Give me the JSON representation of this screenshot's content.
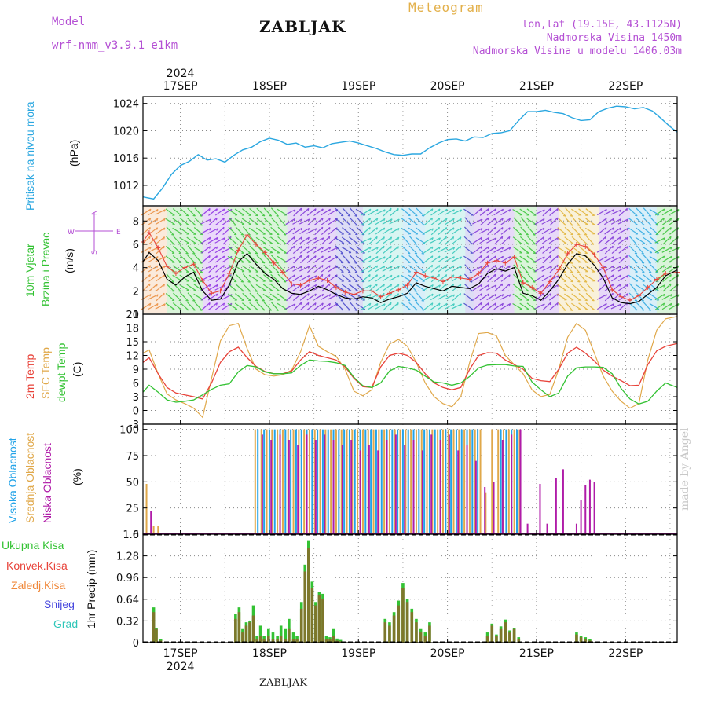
{
  "header": {
    "model_label": "Model",
    "model_name": "wrf-nmm_v3.9.1  e1km",
    "title": "ZABLJAK",
    "meteogram_label": "Meteogram",
    "location": "lon,lat (19.15E, 43.1125N)",
    "altitude": "Nadmorska Visina 1450m",
    "model_altitude": "Nadmorska Visina u modelu 1406.03m",
    "year_top": "2024",
    "year_bottom": "2024",
    "footer": "ZABLJAK",
    "watermark": "made by Angel"
  },
  "time_axis": {
    "start_day": 16.58,
    "end_day": 22.58,
    "tick_labels": [
      "17SEP",
      "18SEP",
      "19SEP",
      "20SEP",
      "21SEP",
      "22SEP"
    ],
    "tick_days": [
      17,
      18,
      19,
      20,
      21,
      22
    ]
  },
  "panel_labels": {
    "pressure": "Pritisak na nivou mora",
    "pressure_unit": "(hPa)",
    "wind_1": "10m Vjetar",
    "wind_2": "Brzina i Pravac",
    "wind_unit": "(m/s)",
    "compass": "N  S  W  E",
    "temp_2m": "2m Temp",
    "temp_sfc": "SFC Temp",
    "temp_dew": "dewpt Temp",
    "temp_unit": "(C)",
    "cloud_high": "Visoka Oblacnost",
    "cloud_mid": "Srednja Oblacnost",
    "cloud_low": "Niska Oblacnost",
    "cloud_unit": "(%)",
    "precip_total": "Ukupna Kisa",
    "precip_conv": "Konvek.Kisa",
    "precip_frz": "Zaledj.Kisa",
    "precip_snow": "Snijeg",
    "precip_grad": "Grad",
    "precip_unit": "1hr Precip (mm)"
  },
  "colors": {
    "pressure": "#2ba7e0",
    "wind_speed": "#000000",
    "wind_gust": "#e8433a",
    "temp_2m": "#e8433a",
    "temp_sfc": "#e0a84a",
    "temp_dew": "#33c233",
    "cloud_high": "#22a3e8",
    "cloud_mid": "#e0a84a",
    "cloud_low": "#b01ca8",
    "precip_total": "#33c233",
    "precip_conv": "#e8433a",
    "precip_frz": "#f0883a",
    "precip_snow": "#4444dd",
    "precip_grad": "#2ec6b8",
    "grid": "#888888"
  },
  "chart_data": [
    {
      "type": "line",
      "name": "pressure",
      "ylim": [
        1009,
        1025
      ],
      "yticks": [
        1012,
        1016,
        1020,
        1024
      ],
      "x": [
        16.58,
        16.7,
        16.8,
        16.9,
        17.0,
        17.1,
        17.2,
        17.3,
        17.4,
        17.5,
        17.6,
        17.7,
        17.8,
        17.9,
        18.0,
        18.1,
        18.2,
        18.3,
        18.4,
        18.5,
        18.6,
        18.7,
        18.8,
        18.9,
        19.0,
        19.1,
        19.2,
        19.3,
        19.4,
        19.5,
        19.6,
        19.7,
        19.8,
        19.9,
        20.0,
        20.1,
        20.2,
        20.3,
        20.4,
        20.5,
        20.6,
        20.7,
        20.8,
        20.9,
        21.0,
        21.1,
        21.2,
        21.3,
        21.4,
        21.5,
        21.6,
        21.7,
        21.8,
        21.9,
        22.0,
        22.1,
        22.2,
        22.3,
        22.4,
        22.5,
        22.58
      ],
      "y": [
        1010.3,
        1010.0,
        1011.6,
        1013.6,
        1014.9,
        1015.5,
        1016.5,
        1015.7,
        1015.9,
        1015.4,
        1016.4,
        1017.2,
        1017.6,
        1018.4,
        1018.9,
        1018.6,
        1018.0,
        1018.2,
        1017.6,
        1017.8,
        1017.5,
        1018.1,
        1018.3,
        1018.5,
        1018.2,
        1017.8,
        1017.4,
        1016.9,
        1016.5,
        1016.4,
        1016.6,
        1016.6,
        1017.5,
        1018.2,
        1018.7,
        1018.8,
        1018.5,
        1019.1,
        1019.0,
        1019.6,
        1019.7,
        1020.0,
        1021.5,
        1022.8,
        1022.8,
        1023.0,
        1022.7,
        1022.5,
        1021.9,
        1021.5,
        1021.6,
        1022.8,
        1023.3,
        1023.6,
        1023.5,
        1023.2,
        1023.4,
        1022.9,
        1021.8,
        1020.6,
        1019.8
      ]
    },
    {
      "type": "line",
      "name": "wind",
      "ylim": [
        0,
        9.3
      ],
      "yticks": [
        0,
        2,
        4,
        6,
        8
      ],
      "x": [
        16.58,
        16.65,
        16.75,
        16.85,
        16.95,
        17.05,
        17.15,
        17.25,
        17.35,
        17.45,
        17.55,
        17.65,
        17.75,
        17.85,
        17.95,
        18.05,
        18.15,
        18.25,
        18.35,
        18.45,
        18.55,
        18.65,
        18.75,
        18.85,
        18.95,
        19.05,
        19.15,
        19.25,
        19.35,
        19.45,
        19.55,
        19.65,
        19.75,
        19.85,
        19.95,
        20.05,
        20.15,
        20.25,
        20.35,
        20.45,
        20.55,
        20.65,
        20.75,
        20.85,
        20.95,
        21.05,
        21.15,
        21.25,
        21.35,
        21.45,
        21.55,
        21.65,
        21.75,
        21.85,
        21.95,
        22.05,
        22.15,
        22.25,
        22.35,
        22.45,
        22.58
      ],
      "speed": [
        4.5,
        5.3,
        4.6,
        3.0,
        2.5,
        3.2,
        3.6,
        2.0,
        1.2,
        1.3,
        2.5,
        4.5,
        5.2,
        4.3,
        3.5,
        3.0,
        2.2,
        1.8,
        1.7,
        2.0,
        2.4,
        2.1,
        1.7,
        1.4,
        1.3,
        1.5,
        1.4,
        1.0,
        1.3,
        1.5,
        1.8,
        2.7,
        2.4,
        2.2,
        2.0,
        2.4,
        2.3,
        2.2,
        2.6,
        3.5,
        3.9,
        3.7,
        4.0,
        1.8,
        1.6,
        1.2,
        2.0,
        3.0,
        4.3,
        5.2,
        5.0,
        4.2,
        3.1,
        1.4,
        1.0,
        0.9,
        1.1,
        1.7,
        2.3,
        3.3,
        3.8
      ],
      "gust": [
        6.2,
        7.0,
        5.7,
        4.1,
        3.5,
        4.0,
        4.3,
        2.9,
        1.8,
        2.0,
        3.5,
        5.5,
        6.8,
        6.0,
        5.3,
        4.4,
        3.6,
        2.6,
        2.5,
        2.9,
        3.1,
        2.9,
        2.3,
        1.9,
        1.7,
        2.0,
        2.0,
        1.5,
        1.8,
        2.1,
        2.5,
        3.6,
        3.3,
        3.1,
        2.8,
        3.2,
        3.1,
        3.0,
        3.5,
        4.4,
        4.6,
        4.4,
        4.9,
        2.7,
        2.3,
        1.8,
        2.8,
        3.8,
        5.2,
        6.0,
        5.8,
        5.1,
        4.0,
        2.1,
        1.5,
        1.2,
        1.6,
        2.3,
        3.0,
        3.5,
        3.6
      ]
    },
    {
      "type": "line",
      "name": "temperature",
      "ylim": [
        -3,
        21
      ],
      "yticks": [
        -3,
        0,
        3,
        6,
        9,
        12,
        15,
        18,
        21
      ],
      "x": [
        16.58,
        16.65,
        16.75,
        16.85,
        16.95,
        17.05,
        17.15,
        17.25,
        17.35,
        17.45,
        17.55,
        17.65,
        17.75,
        17.85,
        17.95,
        18.05,
        18.15,
        18.25,
        18.35,
        18.45,
        18.55,
        18.65,
        18.75,
        18.85,
        18.95,
        19.05,
        19.15,
        19.25,
        19.35,
        19.45,
        19.55,
        19.65,
        19.75,
        19.85,
        19.95,
        20.05,
        20.15,
        20.25,
        20.35,
        20.45,
        20.55,
        20.65,
        20.75,
        20.85,
        20.95,
        21.05,
        21.15,
        21.25,
        21.35,
        21.45,
        21.55,
        21.65,
        21.75,
        21.85,
        21.95,
        22.05,
        22.15,
        22.25,
        22.35,
        22.45,
        22.58
      ],
      "t2m": [
        10.5,
        11.5,
        8.0,
        5.0,
        3.8,
        3.4,
        3.0,
        2.5,
        6.0,
        10.5,
        12.8,
        13.8,
        11.5,
        9.6,
        8.5,
        8.0,
        8.0,
        8.6,
        11.0,
        12.8,
        12.0,
        11.5,
        11.0,
        9.5,
        7.0,
        5.2,
        5.0,
        9.5,
        12.0,
        12.5,
        12.0,
        10.5,
        8.0,
        6.0,
        5.0,
        4.5,
        5.0,
        9.0,
        12.0,
        12.6,
        12.5,
        11.0,
        10.0,
        9.0,
        7.0,
        6.5,
        6.3,
        9.0,
        12.5,
        13.8,
        12.5,
        10.8,
        8.8,
        7.5,
        6.5,
        5.4,
        5.5,
        10.0,
        13.0,
        14.0,
        14.6
      ],
      "tsfc": [
        12.5,
        13.2,
        8.0,
        3.6,
        2.3,
        1.5,
        0.5,
        -1.5,
        7.0,
        15.2,
        18.5,
        19.0,
        13.5,
        9.0,
        7.8,
        7.5,
        7.8,
        8.8,
        12.8,
        18.5,
        14.0,
        12.8,
        11.8,
        9.0,
        4.2,
        3.2,
        4.5,
        10.5,
        14.5,
        15.5,
        14.0,
        10.5,
        6.0,
        3.0,
        1.5,
        0.8,
        3.0,
        10.5,
        16.8,
        17.0,
        16.3,
        12.0,
        10.0,
        8.0,
        4.5,
        3.0,
        3.5,
        9.0,
        16.0,
        19.0,
        17.5,
        12.5,
        7.5,
        4.2,
        2.0,
        0.5,
        1.5,
        11.0,
        17.5,
        20.0,
        20.5
      ],
      "tdew": [
        4.0,
        5.5,
        4.0,
        2.3,
        1.8,
        2.0,
        2.3,
        3.4,
        4.6,
        5.5,
        5.8,
        8.4,
        9.8,
        9.5,
        8.4,
        8.0,
        8.0,
        8.2,
        9.8,
        11.0,
        10.8,
        10.7,
        10.4,
        9.8,
        7.2,
        5.4,
        5.0,
        6.0,
        8.6,
        9.6,
        9.3,
        8.8,
        7.5,
        6.2,
        6.0,
        5.5,
        6.0,
        7.4,
        9.3,
        9.9,
        10.0,
        10.0,
        9.7,
        9.6,
        6.2,
        4.5,
        3.0,
        3.8,
        7.5,
        9.3,
        9.5,
        9.5,
        9.4,
        8.0,
        4.8,
        2.5,
        1.4,
        2.0,
        4.2,
        6.0,
        5.0
      ]
    },
    {
      "type": "bar",
      "name": "cloud_cover",
      "ylim": [
        0,
        105
      ],
      "yticks": [
        0,
        25,
        50,
        75,
        100
      ],
      "series": [
        {
          "key": "mid",
          "x": [
            16.62,
            16.7,
            16.75,
            17.84,
            17.91,
            17.97,
            18.03,
            18.09,
            18.15,
            18.21,
            18.27,
            18.33,
            18.39,
            18.45,
            18.51,
            18.57,
            18.63,
            18.69,
            18.75,
            18.81,
            18.87,
            18.93,
            18.99,
            19.05,
            19.11,
            19.17,
            19.23,
            19.29,
            19.35,
            19.41,
            19.47,
            19.53,
            19.59,
            19.65,
            19.71,
            19.77,
            19.83,
            19.89,
            19.95,
            20.01,
            20.07,
            20.13,
            20.19,
            20.25,
            20.31,
            20.37,
            20.43,
            20.5,
            20.57,
            20.63,
            20.69,
            20.75,
            20.81
          ],
          "values": [
            48,
            8,
            8,
            100,
            100,
            100,
            100,
            100,
            100,
            100,
            100,
            100,
            100,
            100,
            100,
            100,
            100,
            100,
            100,
            100,
            100,
            100,
            100,
            100,
            100,
            100,
            100,
            100,
            100,
            100,
            100,
            100,
            100,
            100,
            100,
            100,
            100,
            100,
            100,
            100,
            100,
            100,
            100,
            100,
            100,
            100,
            40,
            100,
            100,
            100,
            100,
            100,
            100
          ]
        },
        {
          "key": "high",
          "x": [
            17.87,
            17.94,
            18.0,
            18.06,
            18.12,
            18.18,
            18.24,
            18.3,
            18.36,
            18.42,
            18.48,
            18.54,
            18.6,
            18.66,
            18.72,
            18.78,
            18.84,
            18.9,
            18.96,
            19.02,
            19.08,
            19.14,
            19.2,
            19.26,
            19.32,
            19.38,
            19.44,
            19.5,
            19.56,
            19.62,
            19.68,
            19.74,
            19.8,
            19.86,
            19.92,
            19.98,
            20.04,
            20.1,
            20.16,
            20.22,
            20.28,
            20.34,
            20.6,
            20.66,
            20.72,
            20.78
          ],
          "values": [
            100,
            100,
            100,
            100,
            100,
            100,
            100,
            100,
            100,
            100,
            100,
            100,
            100,
            100,
            100,
            100,
            100,
            100,
            100,
            100,
            100,
            100,
            100,
            100,
            100,
            100,
            100,
            100,
            100,
            100,
            100,
            100,
            100,
            100,
            100,
            100,
            100,
            100,
            100,
            100,
            100,
            100,
            100,
            100,
            100,
            100
          ]
        },
        {
          "key": "low",
          "x": [
            16.67,
            17.92,
            18.02,
            18.12,
            18.22,
            18.32,
            18.42,
            18.52,
            18.62,
            18.72,
            18.82,
            18.92,
            19.02,
            19.12,
            19.22,
            19.32,
            19.42,
            19.52,
            19.62,
            19.72,
            19.82,
            19.92,
            20.02,
            20.12,
            20.22,
            20.32,
            20.42,
            20.52,
            20.62,
            20.72,
            20.82,
            20.9,
            21.04,
            21.12,
            21.22,
            21.3,
            21.45,
            21.5,
            21.55,
            21.6,
            21.65
          ],
          "values": [
            22,
            95,
            90,
            95,
            90,
            85,
            95,
            90,
            95,
            90,
            85,
            90,
            80,
            85,
            80,
            90,
            95,
            85,
            90,
            80,
            95,
            90,
            95,
            80,
            85,
            70,
            45,
            50,
            90,
            95,
            100,
            10,
            48,
            10,
            54,
            62,
            10,
            33,
            47,
            52,
            50
          ]
        }
      ]
    },
    {
      "type": "bar",
      "name": "precipitation",
      "ylim": [
        0,
        1.6
      ],
      "yticks": [
        0,
        0.32,
        0.64,
        0.96,
        1.28,
        1.6
      ],
      "x": [
        16.7,
        16.73,
        16.78,
        17.62,
        17.66,
        17.7,
        17.74,
        17.78,
        17.82,
        17.86,
        17.9,
        17.94,
        17.99,
        18.04,
        18.09,
        18.13,
        18.18,
        18.22,
        18.27,
        18.31,
        18.36,
        18.4,
        18.44,
        18.48,
        18.52,
        18.56,
        18.6,
        18.64,
        18.68,
        18.72,
        18.76,
        18.8,
        19.3,
        19.35,
        19.4,
        19.45,
        19.5,
        19.55,
        19.6,
        19.65,
        19.7,
        19.75,
        19.8,
        20.45,
        20.5,
        20.55,
        20.6,
        20.65,
        20.7,
        20.75,
        20.8,
        21.45,
        21.5,
        21.55,
        21.6
      ],
      "total": [
        0.52,
        0.22,
        0.05,
        0.42,
        0.52,
        0.2,
        0.3,
        0.32,
        0.55,
        0.1,
        0.25,
        0.1,
        0.2,
        0.15,
        0.1,
        0.25,
        0.2,
        0.35,
        0.15,
        0.1,
        0.6,
        1.15,
        1.5,
        0.9,
        0.6,
        0.75,
        0.72,
        0.1,
        0.08,
        0.2,
        0.06,
        0.04,
        0.35,
        0.3,
        0.45,
        0.62,
        0.88,
        0.64,
        0.5,
        0.35,
        0.2,
        0.15,
        0.3,
        0.15,
        0.28,
        0.12,
        0.24,
        0.34,
        0.18,
        0.22,
        0.08,
        0.15,
        0.1,
        0.08,
        0.05
      ],
      "convective": [
        0.45,
        0.2,
        0.03,
        0.35,
        0.45,
        0.15,
        0.25,
        0.3,
        0.4,
        0.05,
        0.1,
        0.05,
        0.1,
        0.05,
        0.05,
        0.1,
        0.05,
        0.2,
        0.05,
        0.05,
        0.5,
        1.05,
        1.4,
        0.8,
        0.55,
        0.7,
        0.65,
        0.05,
        0.05,
        0.1,
        0.03,
        0.02,
        0.3,
        0.25,
        0.4,
        0.55,
        0.8,
        0.6,
        0.45,
        0.3,
        0.15,
        0.1,
        0.25,
        0.1,
        0.25,
        0.1,
        0.2,
        0.3,
        0.15,
        0.2,
        0.05,
        0.12,
        0.08,
        0.05,
        0.03
      ]
    }
  ]
}
